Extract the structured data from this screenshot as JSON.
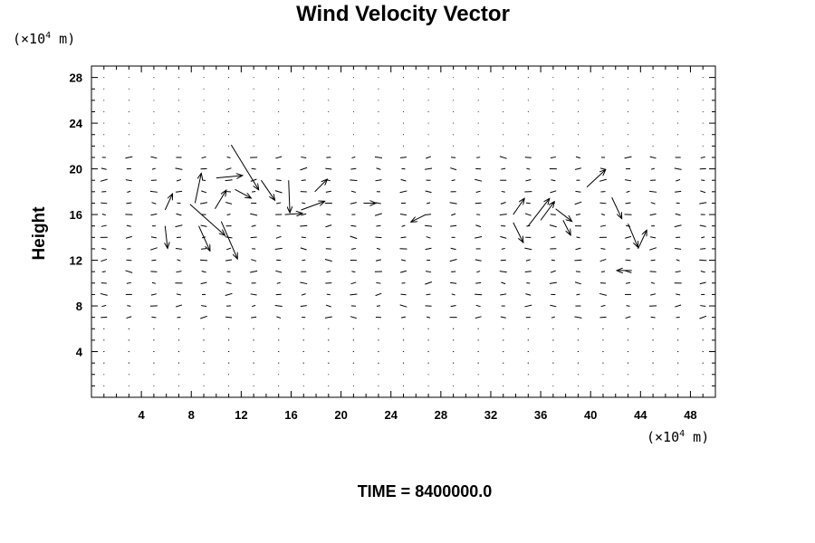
{
  "chart_data": {
    "type": "vector-field",
    "title": "Wind Velocity Vector",
    "xlabel": "",
    "ylabel": "Height",
    "x_unit": {
      "prefix": "(×10",
      "exp": "4",
      "suffix": " m)"
    },
    "y_unit": {
      "prefix": "(×10",
      "exp": "4",
      "suffix": " m)"
    },
    "xlim": [
      0,
      50
    ],
    "ylim": [
      0,
      29
    ],
    "xticks": [
      4,
      8,
      12,
      16,
      20,
      24,
      28,
      32,
      36,
      40,
      44,
      48
    ],
    "yticks": [
      4,
      8,
      12,
      16,
      20,
      24,
      28
    ],
    "grid": false,
    "vectors": [
      {
        "x": 5.9,
        "y": 16.4,
        "u": 0.6,
        "v": 1.3
      },
      {
        "x": 5.9,
        "y": 15.0,
        "u": 0.2,
        "v": -1.8
      },
      {
        "x": 7.9,
        "y": 16.9,
        "u": 2.8,
        "v": -2.5
      },
      {
        "x": 8.3,
        "y": 17.0,
        "u": 0.5,
        "v": 2.4
      },
      {
        "x": 8.6,
        "y": 15.0,
        "u": 0.9,
        "v": -2.0
      },
      {
        "x": 11.2,
        "y": 22.1,
        "u": 2.2,
        "v": -3.6
      },
      {
        "x": 10.4,
        "y": 15.4,
        "u": 1.3,
        "v": -3.0
      },
      {
        "x": 10.0,
        "y": 19.2,
        "u": 2.1,
        "v": 0.2
      },
      {
        "x": 11.5,
        "y": 18.2,
        "u": 1.3,
        "v": -0.7
      },
      {
        "x": 9.9,
        "y": 16.5,
        "u": 0.9,
        "v": 1.5
      },
      {
        "x": 13.6,
        "y": 19.0,
        "u": 1.1,
        "v": -1.6
      },
      {
        "x": 15.8,
        "y": 19.0,
        "u": 0.1,
        "v": -2.6
      },
      {
        "x": 15.5,
        "y": 16.0,
        "u": 1.4,
        "v": 0.1
      },
      {
        "x": 16.8,
        "y": 16.4,
        "u": 1.9,
        "v": 0.7
      },
      {
        "x": 17.9,
        "y": 18.0,
        "u": 1.0,
        "v": 1.0
      },
      {
        "x": 21.8,
        "y": 17.0,
        "u": 1.0,
        "v": 0.0
      },
      {
        "x": 26.8,
        "y": 16.0,
        "u": -1.2,
        "v": -0.6
      },
      {
        "x": 33.8,
        "y": 16.0,
        "u": 0.9,
        "v": 1.3
      },
      {
        "x": 33.8,
        "y": 15.3,
        "u": 0.8,
        "v": -1.6
      },
      {
        "x": 35.0,
        "y": 15.0,
        "u": 1.7,
        "v": 2.2
      },
      {
        "x": 36.0,
        "y": 15.5,
        "u": 1.1,
        "v": 1.5
      },
      {
        "x": 37.2,
        "y": 16.5,
        "u": 1.3,
        "v": -1.0
      },
      {
        "x": 37.8,
        "y": 15.5,
        "u": 0.6,
        "v": -1.2
      },
      {
        "x": 39.7,
        "y": 18.4,
        "u": 1.5,
        "v": 1.4
      },
      {
        "x": 41.7,
        "y": 17.5,
        "u": 0.8,
        "v": -1.7
      },
      {
        "x": 43.0,
        "y": 15.2,
        "u": 0.8,
        "v": -1.9
      },
      {
        "x": 43.8,
        "y": 13.0,
        "u": 0.7,
        "v": 1.5
      },
      {
        "x": 43.3,
        "y": 11.1,
        "u": -1.2,
        "v": 0.0
      }
    ]
  },
  "time_label": "TIME = 8400000.0"
}
